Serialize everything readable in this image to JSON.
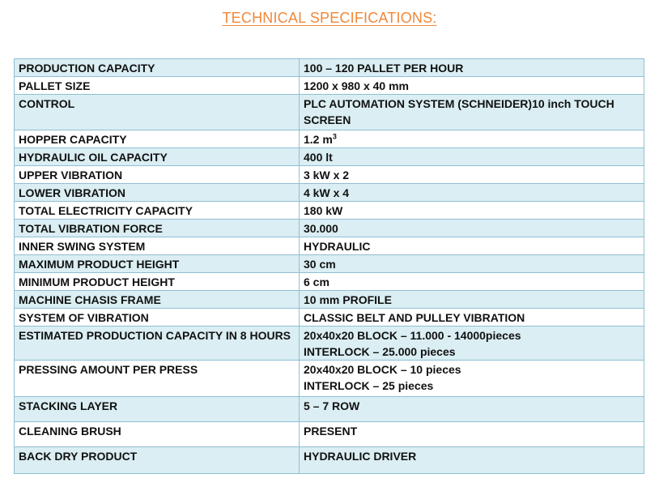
{
  "title": "TECHNICAL SPECIFICATIONS:",
  "colors": {
    "title": "#f0883a",
    "row_band": "#daeef3",
    "border": "#8fbfd3"
  },
  "rows": [
    {
      "label": "PRODUCTION CAPACITY",
      "value": [
        "100 – 120 PALLET PER HOUR"
      ]
    },
    {
      "label": "PALLET SIZE",
      "value": [
        "1200 x 980 x 40 mm"
      ]
    },
    {
      "label": "CONTROL",
      "value": [
        "PLC AUTOMATION SYSTEM (SCHNEIDER)10 inch TOUCH",
        "SCREEN"
      ]
    },
    {
      "label": "HOPPER CAPACITY",
      "value": [
        "1.2 m"
      ],
      "value_sup": "3"
    },
    {
      "label": "HYDRAULIC OIL CAPACITY",
      "value": [
        "400 lt"
      ]
    },
    {
      "label": "UPPER VIBRATION",
      "value": [
        "3 kW x 2"
      ]
    },
    {
      "label": "LOWER VIBRATION",
      "value": [
        "4 kW x 4"
      ]
    },
    {
      "label": "TOTAL ELECTRICITY CAPACITY",
      "value": [
        "180 kW"
      ]
    },
    {
      "label": "TOTAL VIBRATION FORCE",
      "value": [
        "30.000"
      ]
    },
    {
      "label": "INNER SWING SYSTEM",
      "value": [
        "HYDRAULIC"
      ]
    },
    {
      "label": "MAXIMUM PRODUCT HEIGHT",
      "value": [
        "30 cm"
      ]
    },
    {
      "label": "MINIMUM PRODUCT HEIGHT",
      "value": [
        "6 cm"
      ]
    },
    {
      "label": "MACHINE CHASIS FRAME",
      "value": [
        "10 mm PROFILE"
      ]
    },
    {
      "label": "SYSTEM OF VIBRATION",
      "value": [
        "CLASSIC BELT AND PULLEY VIBRATION"
      ]
    },
    {
      "label": "ESTIMATED PRODUCTION CAPACITY IN 8 HOURS",
      "value": [
        "20x40x20 BLOCK – 11.000 - 14000pieces",
        "INTERLOCK – 25.000 pieces"
      ]
    },
    {
      "label": "PRESSING AMOUNT PER PRESS",
      "value": [
        "20x40x20 BLOCK – 10 pieces",
        "INTERLOCK – 25 pieces"
      ]
    },
    {
      "label": "STACKING LAYER",
      "value": [
        "5 – 7 ROW"
      ]
    },
    {
      "label": "CLEANING BRUSH",
      "value": [
        "PRESENT"
      ]
    },
    {
      "label": "BACK DRY PRODUCT",
      "value": [
        "HYDRAULIC DRIVER"
      ]
    }
  ]
}
